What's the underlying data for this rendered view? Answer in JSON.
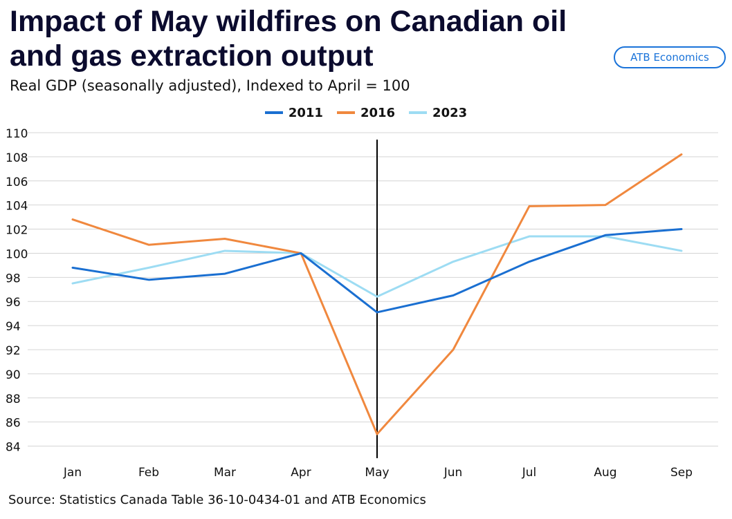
{
  "header": {
    "title": "Impact of May wildfires on Canadian oil and gas extraction output",
    "subtitle": "Real GDP (seasonally adjusted),  Indexed to April = 100",
    "brand": "ATB Economics"
  },
  "footer": {
    "source": "Source: Statistics Canada Table 36-10-0434-01 and ATB Economics"
  },
  "chart_data": {
    "type": "line",
    "title": "Impact of May wildfires on Canadian oil and gas extraction output",
    "subtitle": "Real GDP (seasonally adjusted),  Indexed to April = 100",
    "xlabel": "",
    "ylabel": "",
    "categories": [
      "Jan",
      "Feb",
      "Mar",
      "Apr",
      "May",
      "Jun",
      "Jul",
      "Aug",
      "Sep"
    ],
    "ylim": [
      83,
      110
    ],
    "yticks": [
      84,
      86,
      88,
      90,
      92,
      94,
      96,
      98,
      100,
      102,
      104,
      106,
      108,
      110
    ],
    "grid": true,
    "legend_position": "top-center",
    "marker_line": {
      "category": "May",
      "color": "#000000"
    },
    "series": [
      {
        "name": "2011",
        "color": "#1a6fd1",
        "values": [
          98.8,
          97.8,
          98.3,
          100.0,
          95.1,
          96.5,
          99.3,
          101.5,
          102.0
        ]
      },
      {
        "name": "2016",
        "color": "#f0883e",
        "values": [
          102.8,
          100.7,
          101.2,
          100.0,
          85.0,
          92.0,
          103.9,
          104.0,
          108.2
        ]
      },
      {
        "name": "2023",
        "color": "#9ddcf3",
        "values": [
          97.5,
          98.8,
          100.2,
          100.0,
          96.4,
          99.3,
          101.4,
          101.4,
          100.2
        ]
      }
    ]
  }
}
